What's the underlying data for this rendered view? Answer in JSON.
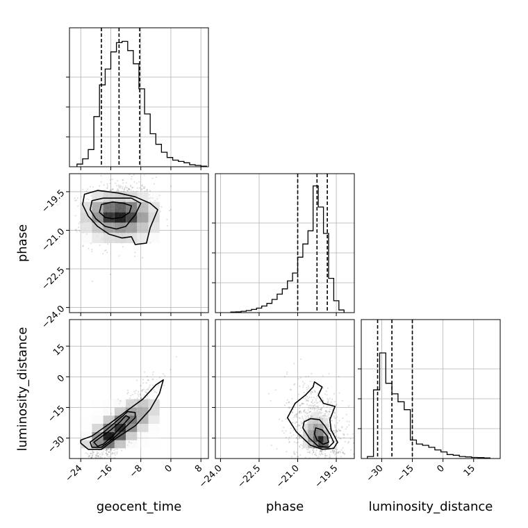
{
  "chart_data": {
    "type": "corner",
    "parameters": [
      "geocent_time",
      "phase",
      "luminosity_distance"
    ],
    "axis_labels": {
      "geocent_time": "geocent_time",
      "phase": "phase",
      "luminosity_distance": "luminosity_distance"
    },
    "ranges": {
      "geocent_time": [
        -27,
        10
      ],
      "phase": [
        -24.2,
        -18.8
      ],
      "luminosity_distance": [
        -40,
        28
      ]
    },
    "ticks": {
      "geocent_time": {
        "values": [
          -24,
          -16,
          -8,
          0,
          8
        ],
        "labels": [
          "−24",
          "−16",
          "−8",
          "0",
          "8"
        ]
      },
      "phase": {
        "values": [
          -24.0,
          -22.5,
          -21.0,
          -19.5
        ],
        "labels": [
          "−24.0",
          "−22.5",
          "−21.0",
          "−19.5"
        ]
      },
      "luminosity_distance": {
        "values": [
          -30,
          -15,
          0,
          15
        ],
        "labels": [
          "−30",
          "−15",
          "0",
          "15"
        ]
      }
    },
    "quantiles": {
      "geocent_time": [
        -18.5,
        -13.8,
        -8.3
      ],
      "phase": [
        -21.0,
        -20.25,
        -19.85
      ],
      "luminosity_distance": [
        -32,
        -25,
        -15
      ]
    },
    "histograms": {
      "geocent_time": {
        "edges": [
          -25,
          -23.5,
          -22,
          -20.5,
          -19,
          -17.5,
          -16,
          -14.5,
          -13,
          -11.5,
          -10,
          -8.5,
          -7,
          -5.5,
          -4,
          -2.5,
          -1,
          0.5,
          2,
          3.5,
          5,
          6.5,
          8,
          9.5
        ],
        "density": [
          0.02,
          0.06,
          0.13,
          0.38,
          0.62,
          0.74,
          0.87,
          0.94,
          0.95,
          0.88,
          0.78,
          0.59,
          0.4,
          0.25,
          0.17,
          0.11,
          0.07,
          0.05,
          0.04,
          0.03,
          0.015,
          0.01,
          0.005
        ]
      },
      "phase": {
        "edges": [
          -23.6,
          -23.4,
          -23.2,
          -23.0,
          -22.8,
          -22.6,
          -22.4,
          -22.2,
          -22.0,
          -21.8,
          -21.6,
          -21.4,
          -21.2,
          -21.0,
          -20.8,
          -20.6,
          -20.4,
          -20.2,
          -20.0,
          -19.8,
          -19.6,
          -19.4,
          -19.2
        ],
        "density": [
          0.004,
          0.006,
          0.01,
          0.016,
          0.024,
          0.034,
          0.05,
          0.07,
          0.1,
          0.14,
          0.18,
          0.24,
          0.3,
          0.42,
          0.52,
          0.62,
          0.96,
          0.8,
          0.6,
          0.26,
          0.09,
          0.02
        ]
      },
      "luminosity_distance": {
        "edges": [
          -37,
          -34,
          -31,
          -28,
          -25,
          -22,
          -19,
          -16,
          -13,
          -10,
          -7,
          -4,
          -1,
          2,
          5,
          8,
          11,
          14,
          17,
          20,
          23
        ],
        "density": [
          0.015,
          0.52,
          0.8,
          0.57,
          0.49,
          0.43,
          0.37,
          0.14,
          0.11,
          0.1,
          0.085,
          0.065,
          0.05,
          0.03,
          0.025,
          0.015,
          0.012,
          0.008,
          0.007,
          0.004
        ]
      }
    },
    "joint": [
      {
        "x": "geocent_time",
        "y": "phase",
        "center": [
          -13.8,
          -20.3
        ],
        "sd": [
          4.6,
          0.62
        ],
        "corr": 0.1,
        "density_grid": {
          "x_edges": [
            -24,
            -21,
            -18,
            -15,
            -12,
            -9,
            -6,
            -3
          ],
          "y_edges": [
            -21.5,
            -21.1,
            -20.7,
            -20.3,
            -19.9,
            -19.5
          ],
          "values": [
            [
              0.06,
              0.1,
              0.14,
              0.16,
              0.14,
              0.1,
              0.06
            ],
            [
              0.12,
              0.24,
              0.4,
              0.46,
              0.42,
              0.26,
              0.12
            ],
            [
              0.18,
              0.46,
              0.9,
              1.0,
              0.82,
              0.42,
              0.16
            ],
            [
              0.14,
              0.36,
              0.62,
              0.7,
              0.56,
              0.3,
              0.12
            ],
            [
              0.05,
              0.12,
              0.18,
              0.2,
              0.16,
              0.1,
              0.05
            ]
          ]
        },
        "contours": [
          [
            [
              -19,
              -20.3
            ],
            [
              -17.5,
              -20.5
            ],
            [
              -15.5,
              -20.55
            ],
            [
              -13,
              -20.5
            ],
            [
              -11,
              -20.3
            ],
            [
              -10.5,
              -20.05
            ],
            [
              -12.5,
              -19.95
            ],
            [
              -15.5,
              -19.9
            ],
            [
              -18.5,
              -20.0
            ]
          ],
          [
            [
              -21.5,
              -20.2
            ],
            [
              -20,
              -20.55
            ],
            [
              -17.5,
              -20.85
            ],
            [
              -14.5,
              -20.95
            ],
            [
              -12,
              -20.85
            ],
            [
              -9.5,
              -20.4
            ],
            [
              -8,
              -19.95
            ],
            [
              -10.5,
              -19.75
            ],
            [
              -14,
              -19.75
            ],
            [
              -18,
              -19.75
            ],
            [
              -21,
              -19.85
            ]
          ],
          [
            [
              -23.5,
              -20.0
            ],
            [
              -22,
              -20.45
            ],
            [
              -19.5,
              -20.85
            ],
            [
              -16.5,
              -21.15
            ],
            [
              -13,
              -21.3
            ],
            [
              -10.5,
              -21.25
            ],
            [
              -9.5,
              -21.55
            ],
            [
              -6.5,
              -21.5
            ],
            [
              -5.5,
              -20.9
            ],
            [
              -3.5,
              -20.2
            ],
            [
              -5.5,
              -19.95
            ],
            [
              -9.5,
              -19.7
            ],
            [
              -14,
              -19.55
            ],
            [
              -19.5,
              -19.45
            ],
            [
              -23,
              -19.6
            ]
          ]
        ]
      },
      {
        "x": "geocent_time",
        "y": "luminosity_distance",
        "center": [
          -14.5,
          -27
        ],
        "sd": [
          5.0,
          12.0
        ],
        "corr": 0.9,
        "density_grid": {
          "x_edges": [
            -24,
            -21,
            -18,
            -15,
            -12,
            -9,
            -6,
            -3
          ],
          "y_edges": [
            -35,
            -31,
            -27,
            -23,
            -19,
            -15,
            -11
          ],
          "values": [
            [
              0.16,
              0.5,
              0.6,
              0.26,
              0.08,
              0.03,
              0.01
            ],
            [
              0.08,
              0.46,
              1.0,
              0.7,
              0.22,
              0.06,
              0.02
            ],
            [
              0.02,
              0.18,
              0.56,
              0.92,
              0.5,
              0.16,
              0.04
            ],
            [
              0.01,
              0.06,
              0.24,
              0.56,
              0.6,
              0.34,
              0.1
            ],
            [
              0.0,
              0.02,
              0.08,
              0.22,
              0.4,
              0.36,
              0.16
            ],
            [
              0.0,
              0.01,
              0.03,
              0.08,
              0.18,
              0.24,
              0.16
            ]
          ]
        },
        "contours": [
          [
            [
              -19.5,
              -34
            ],
            [
              -18,
              -33
            ],
            [
              -15.5,
              -29
            ],
            [
              -12.5,
              -23
            ],
            [
              -11,
              -20
            ],
            [
              -12,
              -19
            ],
            [
              -13.5,
              -22
            ],
            [
              -16,
              -26
            ],
            [
              -19,
              -30
            ],
            [
              -20.5,
              -32
            ]
          ],
          [
            [
              -21,
              -34.5
            ],
            [
              -18.5,
              -34.5
            ],
            [
              -15.5,
              -30.5
            ],
            [
              -12,
              -24.5
            ],
            [
              -9.5,
              -20
            ],
            [
              -9.5,
              -17.5
            ],
            [
              -11.5,
              -17
            ],
            [
              -14,
              -21
            ],
            [
              -17.5,
              -26.5
            ],
            [
              -21.5,
              -32
            ]
          ],
          [
            [
              -24,
              -32.5
            ],
            [
              -22,
              -35.5
            ],
            [
              -18.5,
              -35.5
            ],
            [
              -14.5,
              -30
            ],
            [
              -9.5,
              -24
            ],
            [
              -5.5,
              -16
            ],
            [
              -3,
              -8
            ],
            [
              -2,
              -1.5
            ],
            [
              -4,
              -4
            ],
            [
              -7.5,
              -11
            ],
            [
              -12,
              -17
            ],
            [
              -16,
              -22.5
            ],
            [
              -21,
              -29
            ],
            [
              -24,
              -31
            ]
          ]
        ]
      },
      {
        "x": "phase",
        "y": "luminosity_distance",
        "center": [
          -20.2,
          -27
        ],
        "sd": [
          0.6,
          12.0
        ],
        "corr": -0.35,
        "density_grid": {
          "x_edges": [
            -20.8,
            -20.6,
            -20.4,
            -20.2,
            -20.0,
            -19.8
          ],
          "y_edges": [
            -35,
            -32,
            -29,
            -26,
            -23,
            -20,
            -17
          ],
          "values": [
            [
              0.12,
              0.3,
              0.5,
              0.8,
              0.7,
              0.3
            ],
            [
              0.18,
              0.42,
              0.7,
              1.0,
              0.62,
              0.2
            ],
            [
              0.2,
              0.4,
              0.58,
              0.55,
              0.3,
              0.1
            ],
            [
              0.14,
              0.3,
              0.42,
              0.36,
              0.18,
              0.06
            ],
            [
              0.08,
              0.18,
              0.24,
              0.2,
              0.1,
              0.04
            ],
            [
              0.03,
              0.08,
              0.1,
              0.08,
              0.04,
              0.02
            ]
          ]
        },
        "contours": [
          [
            [
              -20.35,
              -28
            ],
            [
              -20.25,
              -31
            ],
            [
              -20.0,
              -33
            ],
            [
              -19.8,
              -32
            ],
            [
              -19.85,
              -29
            ],
            [
              -20.05,
              -26
            ],
            [
              -20.3,
              -25
            ]
          ],
          [
            [
              -20.8,
              -25
            ],
            [
              -20.55,
              -30
            ],
            [
              -20.2,
              -34
            ],
            [
              -19.8,
              -34.5
            ],
            [
              -19.6,
              -32
            ],
            [
              -19.75,
              -28
            ],
            [
              -19.95,
              -24
            ],
            [
              -20.15,
              -21
            ],
            [
              -20.5,
              -20.5
            ],
            [
              -20.75,
              -22
            ]
          ],
          [
            [
              -21.4,
              -20
            ],
            [
              -21.05,
              -27
            ],
            [
              -20.5,
              -33.5
            ],
            [
              -20.05,
              -35.5
            ],
            [
              -19.6,
              -35
            ],
            [
              -19.45,
              -32
            ],
            [
              -19.7,
              -26
            ],
            [
              -19.75,
              -21
            ],
            [
              -19.55,
              -14.5
            ],
            [
              -20.0,
              -13
            ],
            [
              -20.2,
              -9
            ],
            [
              -20.05,
              -5
            ],
            [
              -20.35,
              -2.5
            ],
            [
              -20.4,
              -5
            ],
            [
              -20.7,
              -9
            ],
            [
              -21.1,
              -13
            ]
          ]
        ]
      }
    ]
  }
}
